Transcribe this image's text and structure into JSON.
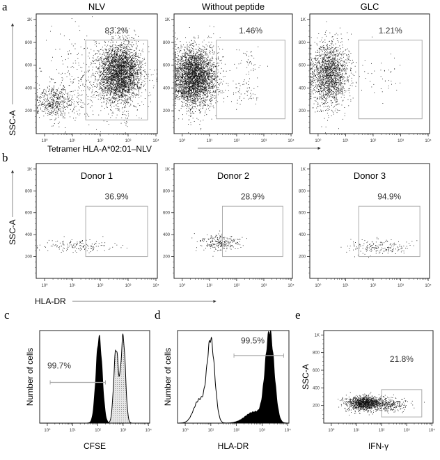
{
  "panel_letters": [
    "a",
    "b",
    "c",
    "d",
    "e"
  ],
  "row_a": {
    "xlabel": "Tetramer HLA-A*02:01–NLV",
    "ylabel": "SSC-A"
  },
  "row_b": {
    "xlabel": "HLA-DR",
    "ylabel": "SSC-A"
  },
  "x_tick_labels": [
    "10⁰",
    "10¹",
    "10²",
    "10³",
    "10⁴"
  ],
  "y_tick_labels": [
    "200",
    "400",
    "600",
    "800",
    "1K"
  ],
  "chart_data": [
    {
      "id": "a1",
      "type": "scatter",
      "title": "NLV",
      "gate_label": "83.2%",
      "xscale": "log",
      "xlim": [
        0.5,
        11220
      ],
      "ylim": [
        0,
        1050
      ],
      "gate": {
        "x": [
          30,
          5000
        ],
        "y": [
          120,
          820
        ]
      },
      "clusters": [
        {
          "log10x": 2.7,
          "y": 530,
          "sdlog": 0.38,
          "sdy": 130,
          "n": 3200
        },
        {
          "log10x": 0.35,
          "y": 280,
          "sdlog": 0.35,
          "sdy": 70,
          "n": 500
        },
        {
          "log10x": 1.6,
          "y": 450,
          "sdlog": 0.9,
          "sdy": 190,
          "n": 400
        }
      ]
    },
    {
      "id": "a2",
      "type": "scatter",
      "title": "Without peptide",
      "gate_label": "1.46%",
      "xscale": "log",
      "xlim": [
        0.5,
        11220
      ],
      "ylim": [
        0,
        1050
      ],
      "gate": {
        "x": [
          18,
          6000
        ],
        "y": [
          130,
          820
        ]
      },
      "clusters": [
        {
          "log10x": 0.45,
          "y": 500,
          "sdlog": 0.4,
          "sdy": 130,
          "n": 3500
        },
        {
          "log10x": 2.3,
          "y": 380,
          "sdlog": 0.3,
          "sdy": 60,
          "n": 60
        },
        {
          "log10x": 2.5,
          "y": 650,
          "sdlog": 0.3,
          "sdy": 80,
          "n": 40
        }
      ]
    },
    {
      "id": "a3",
      "type": "scatter",
      "title": "GLC",
      "gate_label": "1.21%",
      "xscale": "log",
      "xlim": [
        0.5,
        11220
      ],
      "ylim": [
        0,
        1050
      ],
      "gate": {
        "x": [
          30,
          6000
        ],
        "y": [
          130,
          820
        ]
      },
      "clusters": [
        {
          "log10x": 0.4,
          "y": 520,
          "sdlog": 0.35,
          "sdy": 140,
          "n": 1800
        },
        {
          "log10x": 2.3,
          "y": 550,
          "sdlog": 0.4,
          "sdy": 120,
          "n": 40
        }
      ]
    },
    {
      "id": "b1",
      "type": "scatter",
      "title": "Donor 1",
      "gate_label": "36.9%",
      "xscale": "log",
      "xlim": [
        0.5,
        11220
      ],
      "ylim": [
        0,
        1050
      ],
      "gate": {
        "x": [
          30,
          5000
        ],
        "y": [
          200,
          660
        ]
      },
      "clusters": [
        {
          "log10x": 1.1,
          "y": 300,
          "sdlog": 0.6,
          "sdy": 30,
          "n": 150
        }
      ]
    },
    {
      "id": "b2",
      "type": "scatter",
      "title": "Donor 2",
      "gate_label": "28.9%",
      "xscale": "log",
      "xlim": [
        0.5,
        11220
      ],
      "ylim": [
        0,
        1050
      ],
      "gate": {
        "x": [
          30,
          5000
        ],
        "y": [
          200,
          660
        ]
      },
      "clusters": [
        {
          "log10x": 1.4,
          "y": 330,
          "sdlog": 0.4,
          "sdy": 35,
          "n": 250
        }
      ]
    },
    {
      "id": "b3",
      "type": "scatter",
      "title": "Donor 3",
      "gate_label": "94.9%",
      "xscale": "log",
      "xlim": [
        0.5,
        11220
      ],
      "ylim": [
        0,
        1050
      ],
      "gate": {
        "x": [
          30,
          5000
        ],
        "y": [
          200,
          660
        ]
      },
      "clusters": [
        {
          "log10x": 2.2,
          "y": 290,
          "sdlog": 0.6,
          "sdy": 35,
          "n": 180
        }
      ]
    },
    {
      "id": "c",
      "type": "histogram",
      "title": "",
      "xlabel": "CFSE",
      "ylabel": "Number of cells",
      "gate_label": "99.7%",
      "xscale": "log",
      "xlim": [
        0.5,
        11220
      ],
      "gate": {
        "x": [
          1.3,
          200
        ]
      },
      "series": [
        {
          "style": "black",
          "peaks": [
            {
              "log10x": 2.05,
              "sdlog": 0.12,
              "height": 0.92
            }
          ]
        },
        {
          "style": "gray",
          "peaks": [
            {
              "log10x": 2.72,
              "sdlog": 0.09,
              "height": 0.8
            },
            {
              "log10x": 3.0,
              "sdlog": 0.09,
              "height": 0.93
            }
          ]
        }
      ]
    },
    {
      "id": "d",
      "type": "histogram",
      "title": "",
      "xlabel": "HLA-DR",
      "ylabel": "Number of cells",
      "gate_label": "99.5%",
      "xscale": "log",
      "xlim": [
        0.5,
        11220
      ],
      "gate": {
        "x": [
          80,
          7000
        ]
      },
      "series": [
        {
          "style": "open",
          "peaks": [
            {
              "log10x": 1.0,
              "sdlog": 0.15,
              "height": 0.88
            },
            {
              "log10x": 0.55,
              "sdlog": 0.22,
              "height": 0.25
            }
          ]
        },
        {
          "style": "black",
          "peaks": [
            {
              "log10x": 3.3,
              "sdlog": 0.17,
              "height": 0.96
            },
            {
              "log10x": 2.7,
              "sdlog": 0.35,
              "height": 0.12
            }
          ]
        }
      ]
    },
    {
      "id": "e",
      "type": "scatter",
      "title": "",
      "xlabel": "IFN-γ",
      "ylabel": "SSC-A",
      "gate_label": "21.8%",
      "xscale": "log",
      "xlim": [
        0.5,
        11220
      ],
      "ylim": [
        0,
        1050
      ],
      "gate": {
        "x": [
          100,
          4000
        ],
        "y": [
          70,
          380
        ]
      },
      "clusters": [
        {
          "log10x": 1.3,
          "y": 230,
          "sdlog": 0.35,
          "sdy": 40,
          "n": 1200
        },
        {
          "log10x": 2.3,
          "y": 210,
          "sdlog": 0.4,
          "sdy": 40,
          "n": 300
        }
      ]
    }
  ]
}
